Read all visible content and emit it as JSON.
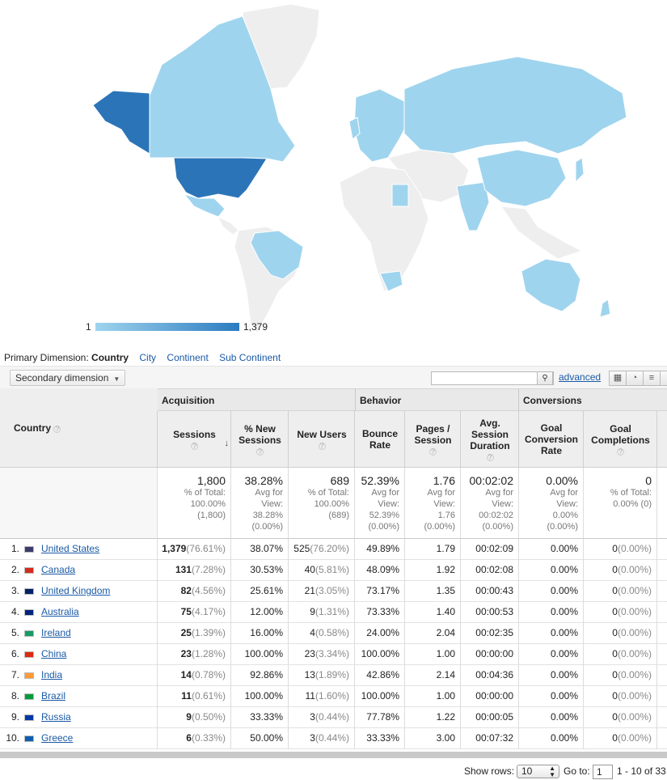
{
  "legend": {
    "min": "1",
    "max": "1,379"
  },
  "primary_dimension": {
    "label": "Primary Dimension:",
    "active": "Country",
    "options": [
      "City",
      "Continent",
      "Sub Continent"
    ]
  },
  "toolbar": {
    "secondary_dimension": "Secondary dimension",
    "search_value": "",
    "advanced": "advanced"
  },
  "groups": {
    "acquisition": "Acquisition",
    "behavior": "Behavior",
    "conversions": "Conversions"
  },
  "columns": {
    "country": "Country",
    "sessions": "Sessions",
    "new_sessions": [
      "% New",
      "Sessions"
    ],
    "new_users": "New Users",
    "bounce_rate": [
      "Bounce",
      "Rate"
    ],
    "pages_session": [
      "Pages /",
      "Session"
    ],
    "avg_duration": [
      "Avg.",
      "Session",
      "Duration"
    ],
    "goal_conv": [
      "Goal",
      "Conversion",
      "Rate"
    ],
    "goal_comp": [
      "Goal",
      "Completions"
    ]
  },
  "totals": {
    "sessions": {
      "value": "1,800",
      "sub": [
        "% of Total:",
        "100.00%",
        "(1,800)"
      ]
    },
    "new_sessions": {
      "value": "38.28%",
      "sub": [
        "Avg for",
        "View:",
        "38.28%",
        "(0.00%)"
      ]
    },
    "new_users": {
      "value": "689",
      "sub": [
        "% of Total:",
        "100.00%",
        "(689)"
      ]
    },
    "bounce_rate": {
      "value": "52.39%",
      "sub": [
        "Avg for",
        "View:",
        "52.39%",
        "(0.00%)"
      ]
    },
    "pages_session": {
      "value": "1.76",
      "sub": [
        "Avg for",
        "View:",
        "1.76",
        "(0.00%)"
      ]
    },
    "avg_duration": {
      "value": "00:02:02",
      "sub": [
        "Avg for",
        "View:",
        "00:02:02",
        "(0.00%)"
      ]
    },
    "goal_conv": {
      "value": "0.00%",
      "sub": [
        "Avg for",
        "View:",
        "0.00%",
        "(0.00%)"
      ]
    },
    "goal_comp": {
      "value": "0",
      "sub": [
        "% of Total:",
        "0.00% (0)"
      ]
    }
  },
  "rows": [
    {
      "n": "1.",
      "country": "United States",
      "flag": "#3c3b6e",
      "sessions": "1,379",
      "sessions_pct": "(76.61%)",
      "new_sessions": "38.07%",
      "new_users": "525",
      "new_users_pct": "(76.20%)",
      "bounce": "49.89%",
      "pages": "1.79",
      "duration": "00:02:09",
      "goal_conv": "0.00%",
      "goal_comp": "0",
      "goal_comp_pct": "(0.00%)"
    },
    {
      "n": "2.",
      "country": "Canada",
      "flag": "#d52b1e",
      "sessions": "131",
      "sessions_pct": "(7.28%)",
      "new_sessions": "30.53%",
      "new_users": "40",
      "new_users_pct": "(5.81%)",
      "bounce": "48.09%",
      "pages": "1.92",
      "duration": "00:02:08",
      "goal_conv": "0.00%",
      "goal_comp": "0",
      "goal_comp_pct": "(0.00%)"
    },
    {
      "n": "3.",
      "country": "United Kingdom",
      "flag": "#012169",
      "sessions": "82",
      "sessions_pct": "(4.56%)",
      "new_sessions": "25.61%",
      "new_users": "21",
      "new_users_pct": "(3.05%)",
      "bounce": "73.17%",
      "pages": "1.35",
      "duration": "00:00:43",
      "goal_conv": "0.00%",
      "goal_comp": "0",
      "goal_comp_pct": "(0.00%)"
    },
    {
      "n": "4.",
      "country": "Australia",
      "flag": "#00247d",
      "sessions": "75",
      "sessions_pct": "(4.17%)",
      "new_sessions": "12.00%",
      "new_users": "9",
      "new_users_pct": "(1.31%)",
      "bounce": "73.33%",
      "pages": "1.40",
      "duration": "00:00:53",
      "goal_conv": "0.00%",
      "goal_comp": "0",
      "goal_comp_pct": "(0.00%)"
    },
    {
      "n": "5.",
      "country": "Ireland",
      "flag": "#169b62",
      "sessions": "25",
      "sessions_pct": "(1.39%)",
      "new_sessions": "16.00%",
      "new_users": "4",
      "new_users_pct": "(0.58%)",
      "bounce": "24.00%",
      "pages": "2.04",
      "duration": "00:02:35",
      "goal_conv": "0.00%",
      "goal_comp": "0",
      "goal_comp_pct": "(0.00%)"
    },
    {
      "n": "6.",
      "country": "China",
      "flag": "#de2910",
      "sessions": "23",
      "sessions_pct": "(1.28%)",
      "new_sessions": "100.00%",
      "new_users": "23",
      "new_users_pct": "(3.34%)",
      "bounce": "100.00%",
      "pages": "1.00",
      "duration": "00:00:00",
      "goal_conv": "0.00%",
      "goal_comp": "0",
      "goal_comp_pct": "(0.00%)"
    },
    {
      "n": "7.",
      "country": "India",
      "flag": "#ff9933",
      "sessions": "14",
      "sessions_pct": "(0.78%)",
      "new_sessions": "92.86%",
      "new_users": "13",
      "new_users_pct": "(1.89%)",
      "bounce": "42.86%",
      "pages": "2.14",
      "duration": "00:04:36",
      "goal_conv": "0.00%",
      "goal_comp": "0",
      "goal_comp_pct": "(0.00%)"
    },
    {
      "n": "8.",
      "country": "Brazil",
      "flag": "#009c3b",
      "sessions": "11",
      "sessions_pct": "(0.61%)",
      "new_sessions": "100.00%",
      "new_users": "11",
      "new_users_pct": "(1.60%)",
      "bounce": "100.00%",
      "pages": "1.00",
      "duration": "00:00:00",
      "goal_conv": "0.00%",
      "goal_comp": "0",
      "goal_comp_pct": "(0.00%)"
    },
    {
      "n": "9.",
      "country": "Russia",
      "flag": "#0039a6",
      "sessions": "9",
      "sessions_pct": "(0.50%)",
      "new_sessions": "33.33%",
      "new_users": "3",
      "new_users_pct": "(0.44%)",
      "bounce": "77.78%",
      "pages": "1.22",
      "duration": "00:00:05",
      "goal_conv": "0.00%",
      "goal_comp": "0",
      "goal_comp_pct": "(0.00%)"
    },
    {
      "n": "10.",
      "country": "Greece",
      "flag": "#0d5eaf",
      "sessions": "6",
      "sessions_pct": "(0.33%)",
      "new_sessions": "50.00%",
      "new_users": "3",
      "new_users_pct": "(0.44%)",
      "bounce": "33.33%",
      "pages": "3.00",
      "duration": "00:07:32",
      "goal_conv": "0.00%",
      "goal_comp": "0",
      "goal_comp_pct": "(0.00%)"
    }
  ],
  "pager": {
    "show_rows_label": "Show rows:",
    "show_rows_value": "10",
    "goto_label": "Go to:",
    "goto_value": "1",
    "range": "1 - 10 of 33"
  }
}
